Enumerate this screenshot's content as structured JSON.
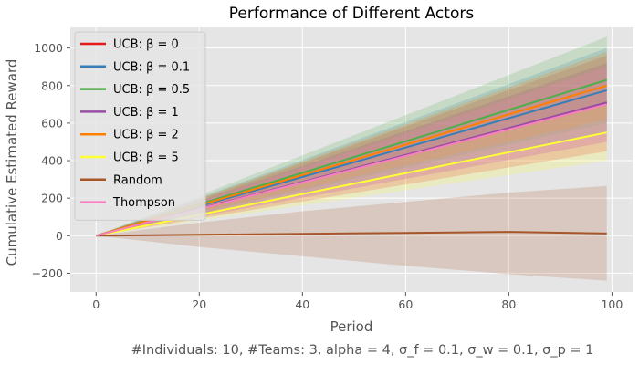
{
  "chart_data": {
    "type": "line",
    "title": "Performance of Different Actors",
    "xlabel": "Period",
    "ylabel": "Cumulative Estimated Reward",
    "caption": "#Individuals: 10,  #Teams: 3,  alpha = 4,  σ_f = 0.1,  σ_w = 0.1,  σ_p = 1",
    "xlim": [
      -5,
      104
    ],
    "ylim": [
      -300,
      1110
    ],
    "xticks": [
      0,
      20,
      40,
      60,
      80,
      100
    ],
    "yticks": [
      -200,
      0,
      200,
      400,
      600,
      800,
      1000
    ],
    "grid": true,
    "legend_position": "upper left",
    "series": [
      {
        "name": "UCB: β =  0",
        "color": "#e41a1c",
        "x": [
          0,
          99
        ],
        "y": [
          0,
          705
        ],
        "band_upper": [
          0,
          960
        ],
        "band_lower": [
          0,
          450
        ]
      },
      {
        "name": "UCB: β =  0.1",
        "color": "#377eb8",
        "x": [
          0,
          99
        ],
        "y": [
          0,
          775
        ],
        "band_upper": [
          0,
          1000
        ],
        "band_lower": [
          0,
          550
        ]
      },
      {
        "name": "UCB: β =  0.5",
        "color": "#4daf4a",
        "x": [
          0,
          99
        ],
        "y": [
          0,
          830
        ],
        "band_upper": [
          0,
          1060
        ],
        "band_lower": [
          0,
          600
        ]
      },
      {
        "name": "UCB: β =  1",
        "color": "#984ea3",
        "x": [
          0,
          99
        ],
        "y": [
          0,
          710
        ],
        "band_upper": [
          0,
          920
        ],
        "band_lower": [
          0,
          500
        ]
      },
      {
        "name": "UCB: β =  2",
        "color": "#ff7f00",
        "x": [
          0,
          99
        ],
        "y": [
          0,
          800
        ],
        "band_upper": [
          0,
          980
        ],
        "band_lower": [
          0,
          620
        ]
      },
      {
        "name": "UCB: β =  5",
        "color": "#ffff33",
        "x": [
          0,
          99
        ],
        "y": [
          0,
          550
        ],
        "band_upper": [
          0,
          700
        ],
        "band_lower": [
          0,
          400
        ]
      },
      {
        "name": "Random",
        "color": "#a65628",
        "x": [
          0,
          20,
          40,
          60,
          80,
          99
        ],
        "y": [
          0,
          5,
          10,
          15,
          20,
          12
        ],
        "band_upper": [
          0,
          70,
          130,
          180,
          230,
          265
        ],
        "band_lower": [
          0,
          -60,
          -110,
          -160,
          -205,
          -240
        ]
      },
      {
        "name": "Thompson",
        "color": "#f781bf",
        "x": [
          0,
          99
        ],
        "y": [
          0,
          700
        ],
        "band_upper": [
          0,
          900
        ],
        "band_lower": [
          0,
          500
        ]
      }
    ]
  }
}
